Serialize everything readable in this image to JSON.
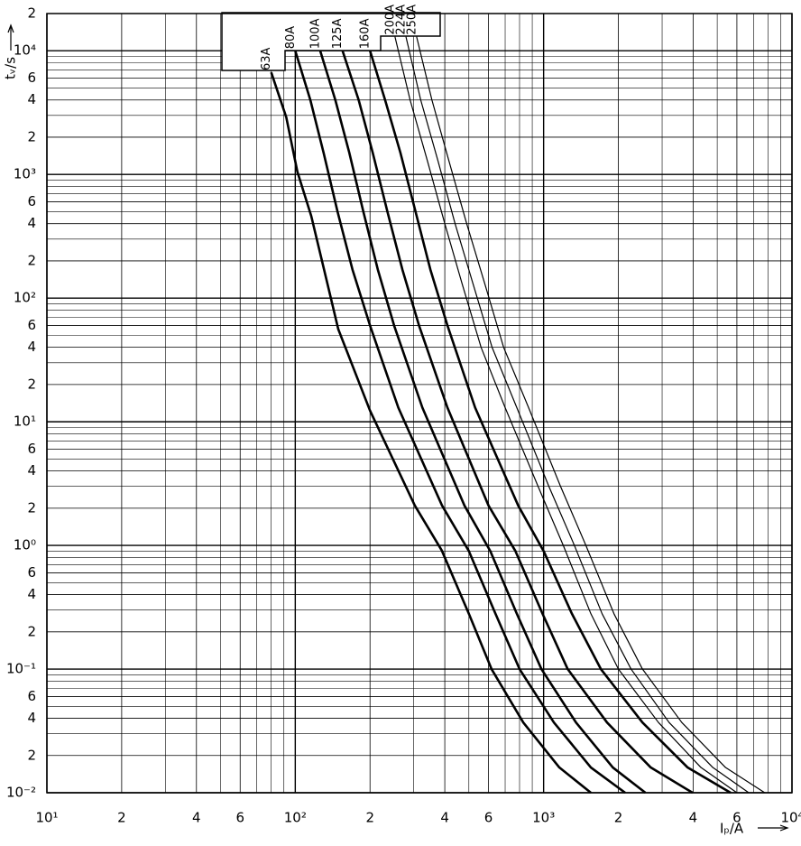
{
  "chart_data": {
    "type": "line",
    "xlabel": "Iₚ/A",
    "ylabel": "tᵥ/s",
    "xlog": true,
    "ylog": true,
    "grid": true,
    "xlim": [
      10,
      10000
    ],
    "ylim": [
      0.01,
      20000
    ],
    "xticks": [
      {
        "value": 10,
        "label": "10¹"
      },
      {
        "value": 20,
        "label": "2"
      },
      {
        "value": 40,
        "label": "4"
      },
      {
        "value": 60,
        "label": "6"
      },
      {
        "value": 100,
        "label": "10²"
      },
      {
        "value": 200,
        "label": "2"
      },
      {
        "value": 400,
        "label": "4"
      },
      {
        "value": 600,
        "label": "6"
      },
      {
        "value": 1000,
        "label": "10³"
      },
      {
        "value": 2000,
        "label": "2"
      },
      {
        "value": 4000,
        "label": "4"
      },
      {
        "value": 6000,
        "label": "6"
      },
      {
        "value": 10000,
        "label": "10⁴"
      }
    ],
    "xminor": [
      30,
      50,
      70,
      80,
      90,
      300,
      500,
      700,
      800,
      900,
      3000,
      5000,
      7000,
      8000,
      9000
    ],
    "yticks": [
      {
        "value": 0.01,
        "label": "10⁻²"
      },
      {
        "value": 0.02,
        "label": "2"
      },
      {
        "value": 0.04,
        "label": "4"
      },
      {
        "value": 0.06,
        "label": "6"
      },
      {
        "value": 0.1,
        "label": "10⁻¹"
      },
      {
        "value": 0.2,
        "label": "2"
      },
      {
        "value": 0.4,
        "label": "4"
      },
      {
        "value": 0.6,
        "label": "6"
      },
      {
        "value": 1,
        "label": "10⁰"
      },
      2,
      4,
      6,
      {
        "value": 10,
        "label": "10¹"
      },
      {
        "value": 20,
        "label": "2"
      },
      {
        "value": 40,
        "label": "4"
      },
      {
        "value": 60,
        "label": "6"
      },
      {
        "value": 100,
        "label": "10²"
      },
      {
        "value": 200,
        "label": "2"
      },
      {
        "value": 400,
        "label": "4"
      },
      {
        "value": 600,
        "label": "6"
      },
      {
        "value": 1000,
        "label": "10³"
      },
      {
        "value": 2000,
        "label": "2"
      },
      {
        "value": 4000,
        "label": "4"
      },
      {
        "value": 6000,
        "label": "6"
      },
      {
        "value": 10000,
        "label": "10⁴"
      },
      {
        "value": 20000,
        "label": "2"
      }
    ],
    "yminor": [
      0.03,
      0.05,
      0.07,
      0.08,
      0.09,
      0.3,
      0.5,
      0.7,
      0.8,
      0.9,
      3,
      5,
      7,
      8,
      9,
      30,
      50,
      70,
      80,
      90,
      300,
      500,
      700,
      800,
      900,
      3000,
      5000,
      7000,
      8000,
      9000
    ],
    "series": [
      {
        "name": "63A",
        "color": "#000000",
        "linewidth": 2.6,
        "x": [
          80,
          92,
          102,
          116,
          131,
          149,
          200,
          303,
          389,
          500,
          617,
          828,
          1157,
          1550
        ],
        "values": [
          6700,
          2900,
          1050,
          460,
          166,
          56,
          12.3,
          2.1,
          0.91,
          0.28,
          0.1,
          0.037,
          0.016,
          0.01
        ]
      },
      {
        "name": "80A",
        "color": "#000000",
        "linewidth": 2.6,
        "x": [
          100,
          115,
          130,
          148,
          170,
          200,
          260,
          390,
          500,
          640,
          800,
          1100,
          1550,
          2130
        ],
        "values": [
          10000,
          4000,
          1500,
          500,
          170,
          60,
          13,
          2.1,
          0.9,
          0.28,
          0.1,
          0.037,
          0.016,
          0.01
        ]
      },
      {
        "name": "100A",
        "color": "#000000",
        "linewidth": 2.6,
        "x": [
          126,
          145,
          165,
          188,
          215,
          250,
          325,
          480,
          610,
          780,
          980,
          1350,
          1900,
          2570
        ],
        "values": [
          10000,
          4000,
          1500,
          500,
          170,
          60,
          13,
          2.1,
          0.9,
          0.28,
          0.1,
          0.037,
          0.016,
          0.01
        ]
      },
      {
        "name": "125A",
        "color": "#000000",
        "linewidth": 2.6,
        "x": [
          155,
          180,
          205,
          235,
          270,
          315,
          410,
          600,
          770,
          990,
          1250,
          1800,
          2700,
          3980
        ],
        "values": [
          10000,
          4000,
          1500,
          500,
          170,
          60,
          13,
          2.1,
          0.9,
          0.28,
          0.1,
          0.037,
          0.016,
          0.01
        ]
      },
      {
        "name": "160A",
        "color": "#000000",
        "linewidth": 2.6,
        "x": [
          200,
          230,
          265,
          305,
          350,
          410,
          530,
          790,
          1000,
          1300,
          1700,
          2500,
          3800,
          5660
        ],
        "values": [
          10000,
          4000,
          1500,
          500,
          170,
          60,
          13,
          2.1,
          0.9,
          0.28,
          0.1,
          0.037,
          0.016,
          0.01
        ]
      },
      {
        "name": "200A",
        "color": "#000000",
        "linewidth": 1.2,
        "x": [
          252,
          290,
          340,
          400,
          470,
          560,
          700,
          950,
          1200,
          1550,
          2000,
          2900,
          4300,
          6000
        ],
        "values": [
          13000,
          4000,
          1300,
          400,
          130,
          40,
          13,
          3,
          1,
          0.28,
          0.1,
          0.037,
          0.016,
          0.01
        ]
      },
      {
        "name": "224A",
        "color": "#000000",
        "linewidth": 1.2,
        "x": [
          279,
          320,
          375,
          440,
          520,
          620,
          780,
          1050,
          1330,
          1720,
          2250,
          3200,
          4800,
          6700
        ],
        "values": [
          13000,
          4000,
          1300,
          400,
          130,
          40,
          13,
          3,
          1,
          0.28,
          0.1,
          0.037,
          0.016,
          0.01
        ]
      },
      {
        "name": "250A",
        "color": "#000000",
        "linewidth": 1.2,
        "x": [
          308,
          355,
          415,
          490,
          580,
          690,
          870,
          1170,
          1480,
          1920,
          2500,
          3600,
          5400,
          7770
        ],
        "values": [
          13000,
          4000,
          1300,
          400,
          130,
          40,
          13,
          3,
          1,
          0.28,
          0.1,
          0.037,
          0.016,
          0.01
        ]
      }
    ]
  }
}
